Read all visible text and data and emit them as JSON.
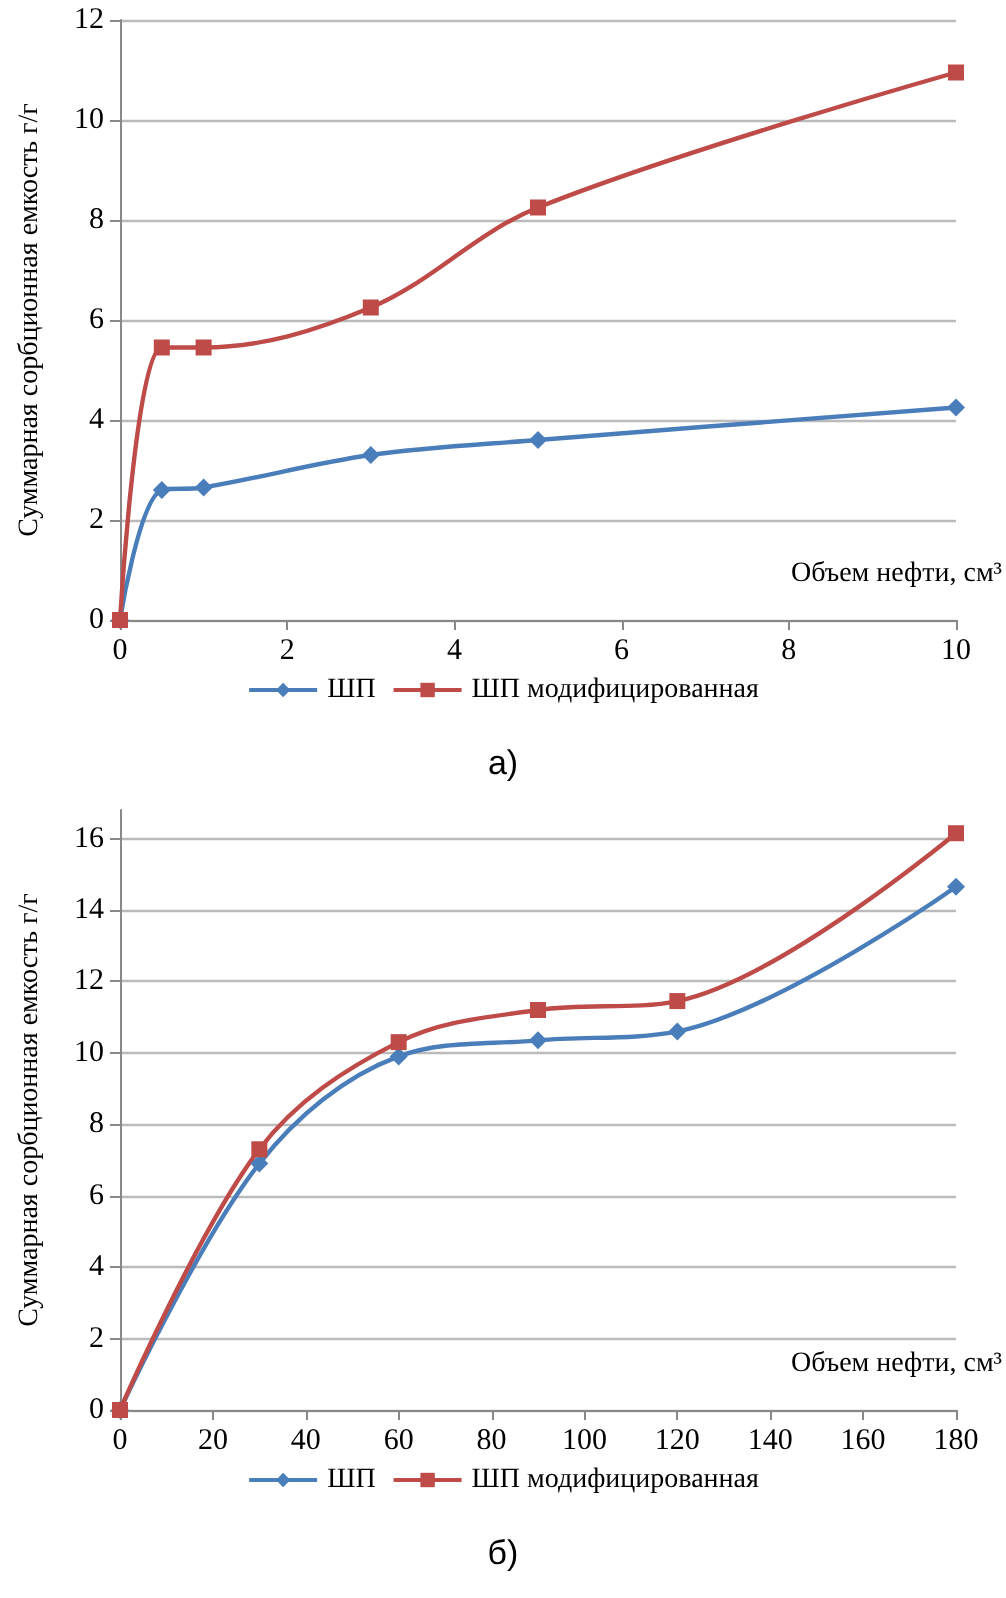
{
  "chart_data": [
    {
      "type": "line",
      "xlabel": "Объем нефти, см³",
      "ylabel": "Суммарная сорбционная емкость г/г",
      "annotations": [
        "а)"
      ],
      "xlim": [
        0,
        10
      ],
      "xticks": [
        0,
        2,
        4,
        6,
        8,
        10
      ],
      "ylim": [
        0,
        12
      ],
      "yticks": [
        0,
        2,
        4,
        6,
        8,
        10,
        12
      ],
      "grid": "y",
      "legend": "bottom",
      "line_style": "solid",
      "series": [
        {
          "name": "ШП",
          "color": "#4a7ebb",
          "marker": "diamond",
          "x": [
            0,
            0.5,
            1,
            3,
            5,
            10
          ],
          "values": [
            0,
            2.6,
            2.65,
            3.3,
            3.6,
            4.25
          ]
        },
        {
          "name": "ШП модифицированная",
          "color": "#be4b48",
          "marker": "square",
          "x": [
            0,
            0.5,
            1,
            3,
            5,
            10
          ],
          "values": [
            0,
            5.45,
            5.45,
            6.25,
            8.25,
            10.95
          ]
        }
      ]
    },
    {
      "type": "line",
      "xlabel": "Объем нефти, см³",
      "ylabel": "Суммарная сорбционная емкость г/г",
      "annotations": [
        "б)"
      ],
      "xlim": [
        0,
        180
      ],
      "xticks": [
        0,
        20,
        40,
        60,
        80,
        100,
        120,
        140,
        160,
        180
      ],
      "ylim": [
        0,
        16.8
      ],
      "yticks": [
        0,
        2,
        4,
        6,
        8,
        10,
        12,
        14,
        16
      ],
      "grid": "y",
      "legend": "bottom",
      "line_style": "solid",
      "series": [
        {
          "name": "ШП",
          "color": "#4a7ebb",
          "marker": "diamond",
          "x": [
            0,
            30,
            60,
            90,
            120,
            180
          ],
          "values": [
            0,
            6.9,
            9.9,
            10.35,
            10.6,
            14.65
          ]
        },
        {
          "name": "ШП модифицированная",
          "color": "#be4b48",
          "marker": "square",
          "x": [
            0,
            30,
            60,
            90,
            120,
            180
          ],
          "values": [
            0,
            7.3,
            10.3,
            11.2,
            11.45,
            16.15
          ]
        }
      ]
    }
  ]
}
